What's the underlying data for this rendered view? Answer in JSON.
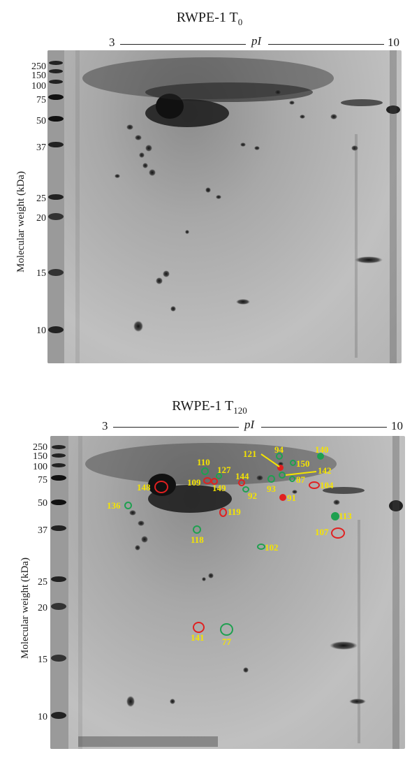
{
  "figure": {
    "top_panel": {
      "title_main": "RWPE-1 T",
      "title_sub": "0",
      "pi_left": "3",
      "pi_right": "10",
      "pi_label": "pI",
      "ylabel": "Molecular weight (kDa)",
      "ticks": [
        "250",
        "150",
        "100",
        "75",
        "50",
        "37",
        "25",
        "20",
        "15",
        "10"
      ]
    },
    "bottom_panel": {
      "title_main": "RWPE-1 T",
      "title_sub": "120",
      "pi_left": "3",
      "pi_right": "10",
      "pi_label": "pI",
      "ylabel": "Molecular weight (kDa)",
      "ticks": [
        "250",
        "150",
        "100",
        "75",
        "50",
        "37",
        "25",
        "20",
        "15",
        "10"
      ],
      "spot_labels": [
        "94",
        "140",
        "121",
        "150",
        "110",
        "127",
        "142",
        "144",
        "87",
        "109",
        "149",
        "148",
        "93",
        "104",
        "92",
        "91",
        "136",
        "119",
        "113",
        "118",
        "107",
        "102",
        "141",
        "77"
      ],
      "colors": {
        "red": "#e02020",
        "green": "#1fa050",
        "label": "#f5e400"
      }
    }
  }
}
